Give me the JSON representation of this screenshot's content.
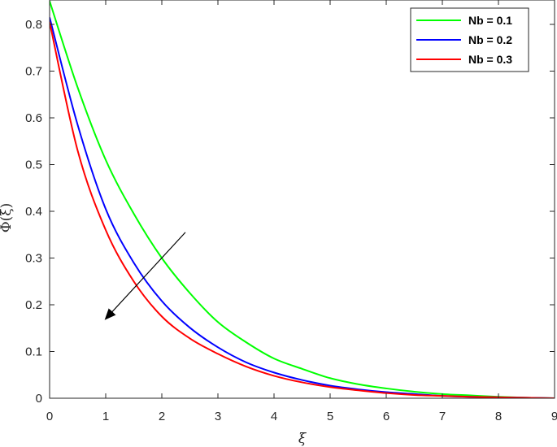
{
  "chart_data": {
    "type": "line",
    "xlabel": "ξ",
    "ylabel": "Φ(ξ)",
    "xlim": [
      0,
      9
    ],
    "ylim": [
      0,
      0.85
    ],
    "xticks": [
      "0",
      "1",
      "2",
      "3",
      "4",
      "5",
      "6",
      "7",
      "8",
      "9"
    ],
    "yticks": [
      "0",
      "0.1",
      "0.2",
      "0.3",
      "0.4",
      "0.5",
      "0.6",
      "0.7",
      "0.8"
    ],
    "grid": false,
    "legend_position": "top-right",
    "series": [
      {
        "name": "Nb = 0.1",
        "color": "#00ff00",
        "x": [
          0,
          0.5,
          1,
          1.5,
          2,
          2.5,
          3,
          3.5,
          4,
          4.5,
          5,
          5.5,
          6,
          6.5,
          7,
          7.5,
          8,
          8.5,
          9
        ],
        "y": [
          0.85,
          0.665,
          0.51,
          0.395,
          0.3,
          0.225,
          0.163,
          0.12,
          0.085,
          0.063,
          0.043,
          0.03,
          0.021,
          0.014,
          0.009,
          0.006,
          0.003,
          0.001,
          0
        ]
      },
      {
        "name": "Nb = 0.2",
        "color": "#0000ff",
        "x": [
          0,
          0.5,
          1,
          1.5,
          2,
          2.5,
          3,
          3.5,
          4,
          4.5,
          5,
          5.5,
          6,
          6.5,
          7,
          7.5,
          8,
          8.5,
          9
        ],
        "y": [
          0.815,
          0.585,
          0.405,
          0.29,
          0.208,
          0.151,
          0.109,
          0.077,
          0.055,
          0.039,
          0.027,
          0.019,
          0.013,
          0.009,
          0.005,
          0.003,
          0.002,
          0.001,
          0
        ]
      },
      {
        "name": "Nb = 0.3",
        "color": "#ff0000",
        "x": [
          0,
          0.5,
          1,
          1.5,
          2,
          2.5,
          3,
          3.5,
          4,
          4.5,
          5,
          5.5,
          6,
          6.5,
          7,
          7.5,
          8,
          8.5,
          9
        ],
        "y": [
          0.805,
          0.53,
          0.36,
          0.25,
          0.175,
          0.128,
          0.095,
          0.068,
          0.048,
          0.034,
          0.024,
          0.017,
          0.011,
          0.007,
          0.005,
          0.003,
          0.002,
          0.001,
          0
        ]
      }
    ],
    "annotation": {
      "type": "arrow",
      "from": [
        2.42,
        0.355
      ],
      "to": [
        1.0,
        0.17
      ],
      "color": "#000000"
    }
  }
}
